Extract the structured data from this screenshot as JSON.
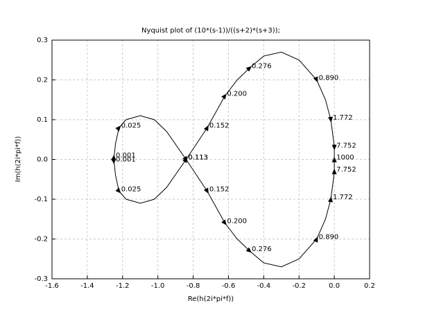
{
  "chart_data": {
    "type": "line",
    "title": "Nyquist plot of (10*(s-1))/((s+2)*(s+3));",
    "x_label": "Re(h(2i*pi*f))",
    "y_label": "Im(h(2i*pi*f))",
    "xlim": [
      -1.6,
      0.2
    ],
    "ylim": [
      -0.3,
      0.3
    ],
    "xticks": [
      -1.6,
      -1.4,
      -1.2,
      {
        "value": -1.0,
        "label": "-1.0"
      },
      -0.8,
      -0.6,
      -0.4,
      -0.2,
      {
        "value": 0.0,
        "label": "0.0"
      },
      0.2
    ],
    "yticks": [
      -0.3,
      -0.2,
      -0.1,
      {
        "value": 0.0,
        "label": "0.0"
      },
      0.1,
      0.2,
      0.3
    ],
    "grid": true,
    "series": [
      {
        "color": "#000000",
        "x": [
          -1.25,
          -1.24,
          -1.22,
          -1.18,
          -1.1,
          -1.02,
          -0.95,
          -0.84,
          -0.78,
          -0.72,
          -0.67,
          -0.62,
          -0.55,
          -0.48,
          -0.4,
          -0.3,
          -0.2,
          -0.1,
          -0.05,
          -0.02,
          -0.005,
          0.0,
          0.0
        ],
        "y": [
          0.0,
          0.04,
          0.08,
          0.1,
          0.11,
          0.1,
          0.07,
          0.0,
          -0.04,
          -0.08,
          -0.12,
          -0.16,
          -0.2,
          -0.23,
          -0.26,
          -0.27,
          -0.25,
          -0.2,
          -0.15,
          -0.1,
          -0.05,
          -0.03,
          0.0
        ],
        "labels": [
          {
            "x": -1.25,
            "y": 0.005,
            "label": "0.001"
          },
          {
            "x": -1.22,
            "y": 0.08,
            "label": "0.025"
          },
          {
            "x": -0.84,
            "y": 0.0,
            "label": "0.113"
          },
          {
            "x": -0.72,
            "y": -0.08,
            "label": "0.152"
          },
          {
            "x": -0.62,
            "y": -0.16,
            "label": "0.200"
          },
          {
            "x": -0.48,
            "y": -0.23,
            "label": "0.276"
          },
          {
            "x": -0.1,
            "y": -0.2,
            "label": "0.890"
          },
          {
            "x": -0.02,
            "y": -0.1,
            "label": "1.772"
          },
          {
            "x": 0.0,
            "y": -0.03,
            "label": "7.752"
          },
          {
            "x": 0.0,
            "y": 0.0,
            "label": "1000"
          }
        ]
      },
      {
        "color": "#000000",
        "x": [
          -1.25,
          -1.24,
          -1.22,
          -1.18,
          -1.1,
          -1.02,
          -0.95,
          -0.84,
          -0.78,
          -0.72,
          -0.67,
          -0.62,
          -0.55,
          -0.48,
          -0.4,
          -0.3,
          -0.2,
          -0.1,
          -0.05,
          -0.02,
          -0.005,
          0.0,
          0.0
        ],
        "y": [
          0.0,
          -0.04,
          -0.08,
          -0.1,
          -0.11,
          -0.1,
          -0.07,
          0.0,
          0.04,
          0.08,
          0.12,
          0.16,
          0.2,
          0.23,
          0.26,
          0.27,
          0.25,
          0.2,
          0.15,
          0.1,
          0.05,
          0.03,
          0.0
        ],
        "labels": [
          {
            "x": -1.25,
            "y": -0.005,
            "label": "0.001"
          },
          {
            "x": -1.22,
            "y": -0.08,
            "label": "0.025"
          },
          {
            "x": -0.84,
            "y": 0.0,
            "label": "0.113"
          },
          {
            "x": -0.72,
            "y": 0.08,
            "label": "0.152"
          },
          {
            "x": -0.62,
            "y": 0.16,
            "label": "0.200"
          },
          {
            "x": -0.48,
            "y": 0.23,
            "label": "0.276"
          },
          {
            "x": -0.1,
            "y": 0.2,
            "label": "0.890"
          },
          {
            "x": -0.02,
            "y": 0.1,
            "label": "1.772"
          },
          {
            "x": 0.0,
            "y": 0.03,
            "label": "7.752"
          }
        ]
      }
    ]
  }
}
